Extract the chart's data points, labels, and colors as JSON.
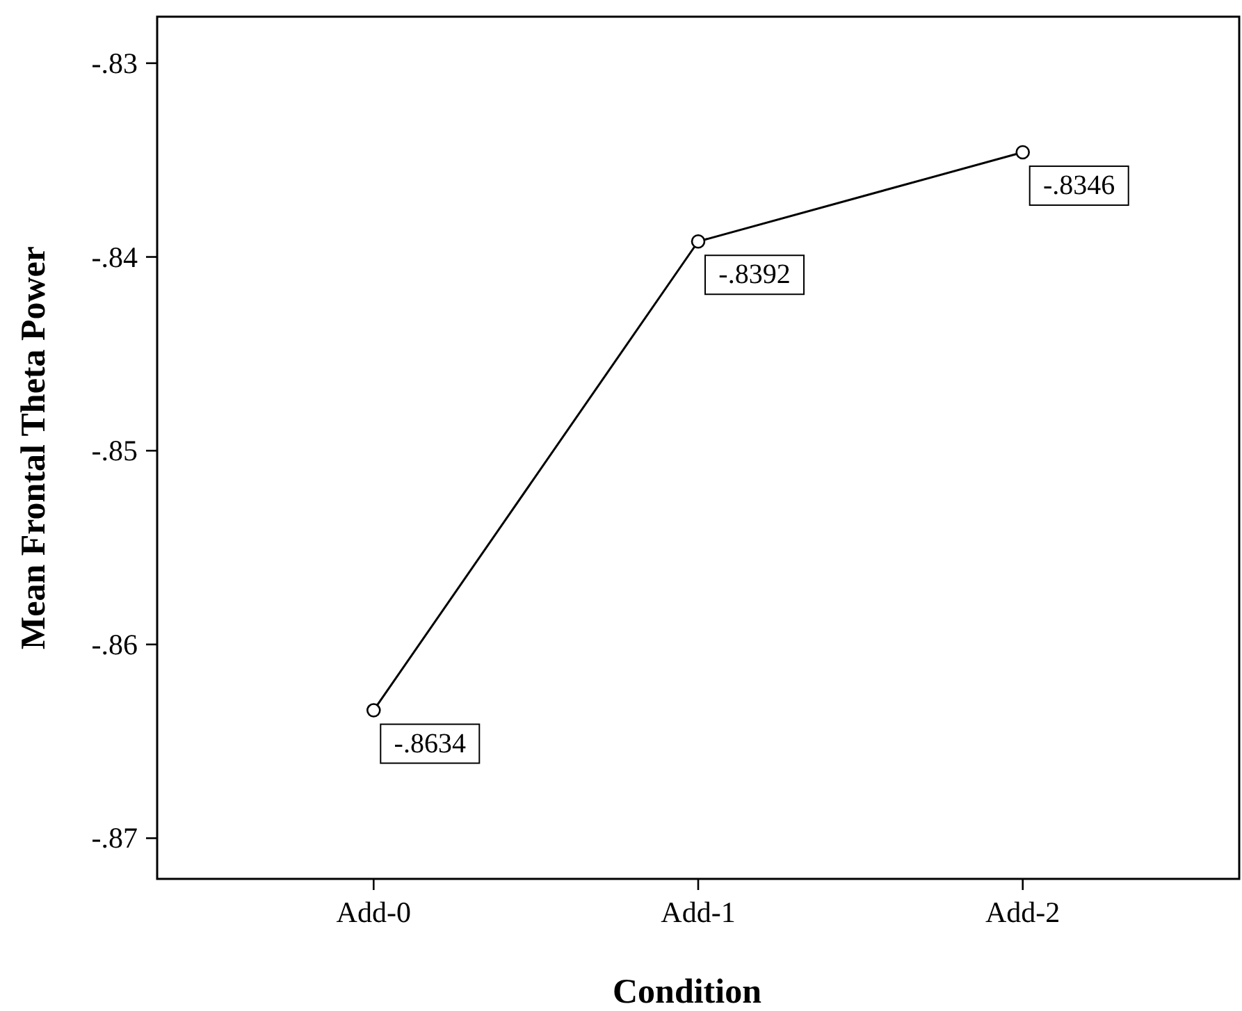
{
  "chart_data": {
    "type": "line",
    "xlabel": "Condition",
    "ylabel": "Mean Frontal Theta Power",
    "categories": [
      "Add-0",
      "Add-1",
      "Add-2"
    ],
    "series": [
      {
        "color": "#000000",
        "values": [
          -0.8634,
          -0.8392,
          -0.8346
        ],
        "value_labels": [
          "-.8634",
          "-.8392",
          "-.8346"
        ]
      }
    ],
    "ylim": [
      -0.8721,
      -0.8276
    ],
    "yticks": [
      {
        "value": -0.87,
        "label": "-.87"
      },
      {
        "value": -0.86,
        "label": "-.86"
      },
      {
        "value": -0.85,
        "label": "-.85"
      },
      {
        "value": -0.84,
        "label": "-.84"
      },
      {
        "value": -0.83,
        "label": "-.83"
      }
    ],
    "marker": "circle",
    "line_style": "solid"
  }
}
